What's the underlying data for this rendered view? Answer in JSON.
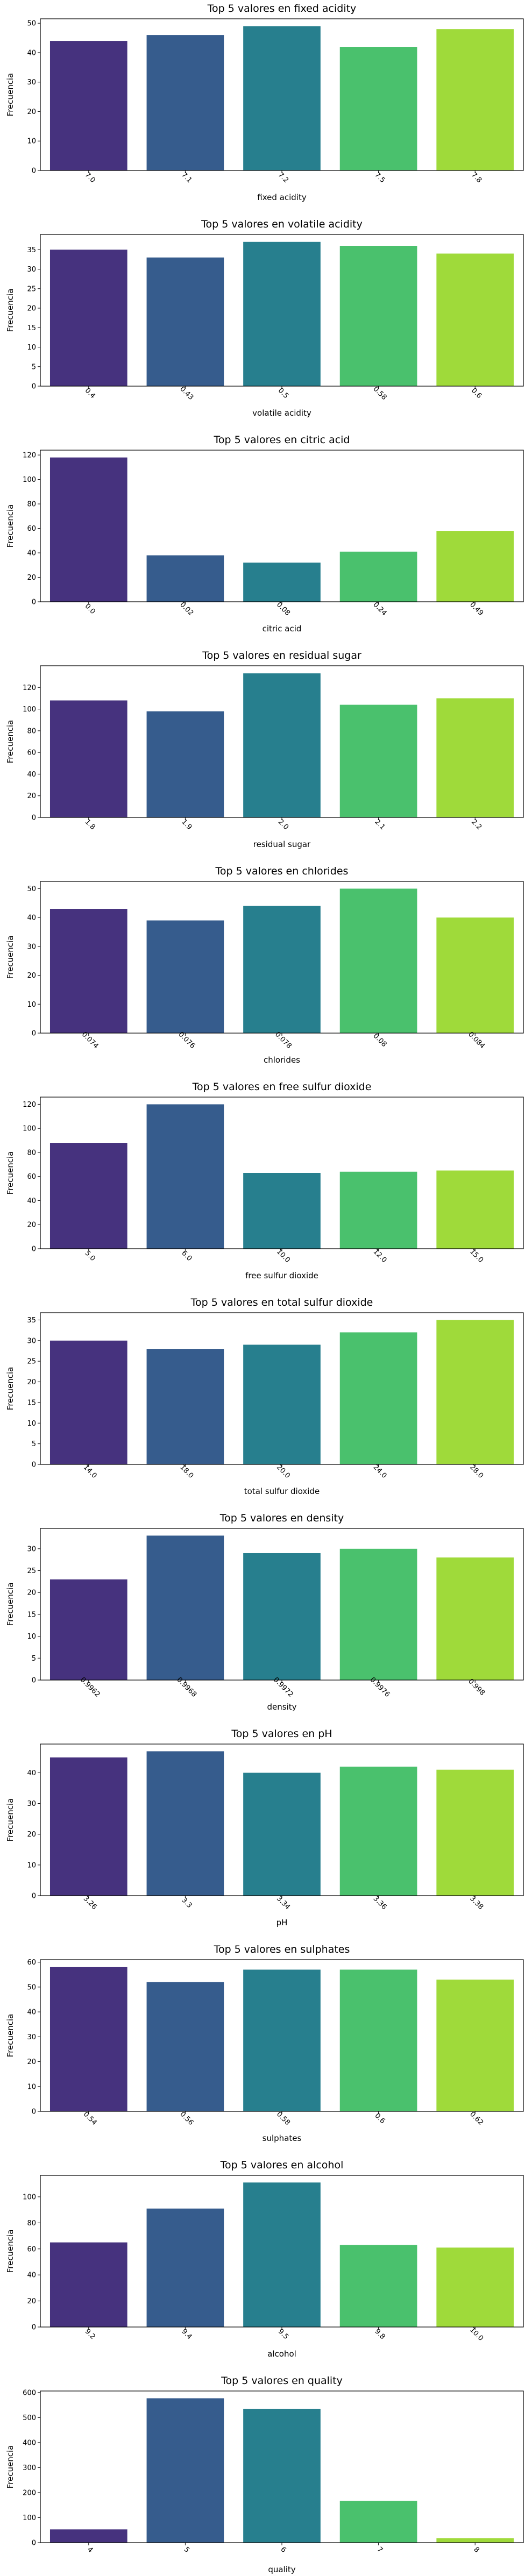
{
  "palette": [
    "#46327e",
    "#365c8d",
    "#277f8e",
    "#4ac16d",
    "#9fda3a"
  ],
  "chart_data": [
    {
      "type": "bar",
      "title": "Top 5 valores en fixed acidity",
      "xlabel": "fixed acidity",
      "ylabel": "Frecuencia",
      "categories": [
        "7.0",
        "7.1",
        "7.2",
        "7.5",
        "7.8"
      ],
      "values": [
        44,
        46,
        49,
        42,
        48
      ],
      "ylim": [
        0,
        51.5
      ],
      "yticks": [
        0,
        10,
        20,
        30,
        40,
        50
      ]
    },
    {
      "type": "bar",
      "title": "Top 5 valores en volatile acidity",
      "xlabel": "volatile acidity",
      "ylabel": "Frecuencia",
      "categories": [
        "0.4",
        "0.43",
        "0.5",
        "0.58",
        "0.6"
      ],
      "values": [
        35,
        33,
        37,
        36,
        34
      ],
      "ylim": [
        0,
        38.9
      ],
      "yticks": [
        0,
        5,
        10,
        15,
        20,
        25,
        30,
        35
      ]
    },
    {
      "type": "bar",
      "title": "Top 5 valores en citric acid",
      "xlabel": "citric acid",
      "ylabel": "Frecuencia",
      "categories": [
        "0.0",
        "0.02",
        "0.08",
        "0.24",
        "0.49"
      ],
      "values": [
        118,
        38,
        32,
        41,
        58
      ],
      "ylim": [
        0,
        124
      ],
      "yticks": [
        0,
        20,
        40,
        60,
        80,
        100,
        120
      ]
    },
    {
      "type": "bar",
      "title": "Top 5 valores en residual sugar",
      "xlabel": "residual sugar",
      "ylabel": "Frecuencia",
      "categories": [
        "1.8",
        "1.9",
        "2.0",
        "2.1",
        "2.2"
      ],
      "values": [
        108,
        98,
        133,
        104,
        110
      ],
      "ylim": [
        0,
        140
      ],
      "yticks": [
        0,
        20,
        40,
        60,
        80,
        100,
        120
      ]
    },
    {
      "type": "bar",
      "title": "Top 5 valores en chlorides",
      "xlabel": "chlorides",
      "ylabel": "Frecuencia",
      "categories": [
        "0.074",
        "0.076",
        "0.078",
        "0.08",
        "0.084"
      ],
      "values": [
        43,
        39,
        44,
        50,
        40
      ],
      "ylim": [
        0,
        52.5
      ],
      "yticks": [
        0,
        10,
        20,
        30,
        40,
        50
      ]
    },
    {
      "type": "bar",
      "title": "Top 5 valores en free sulfur dioxide",
      "xlabel": "free sulfur dioxide",
      "ylabel": "Frecuencia",
      "categories": [
        "5.0",
        "6.0",
        "10.0",
        "12.0",
        "15.0"
      ],
      "values": [
        88,
        120,
        63,
        64,
        65
      ],
      "ylim": [
        0,
        126
      ],
      "yticks": [
        0,
        20,
        40,
        60,
        80,
        100,
        120
      ]
    },
    {
      "type": "bar",
      "title": "Top 5 valores en total sulfur dioxide",
      "xlabel": "total sulfur dioxide",
      "ylabel": "Frecuencia",
      "categories": [
        "14.0",
        "18.0",
        "20.0",
        "24.0",
        "28.0"
      ],
      "values": [
        30,
        28,
        29,
        32,
        35
      ],
      "ylim": [
        0,
        36.75
      ],
      "yticks": [
        0,
        5,
        10,
        15,
        20,
        25,
        30,
        35
      ]
    },
    {
      "type": "bar",
      "title": "Top 5 valores en density",
      "xlabel": "density",
      "ylabel": "Frecuencia",
      "categories": [
        "0.9962",
        "0.9968",
        "0.9972",
        "0.9976",
        "0.998"
      ],
      "values": [
        23,
        33,
        29,
        30,
        28
      ],
      "ylim": [
        0,
        34.65
      ],
      "yticks": [
        0,
        5,
        10,
        15,
        20,
        25,
        30
      ]
    },
    {
      "type": "bar",
      "title": "Top 5 valores en pH",
      "xlabel": "pH",
      "ylabel": "Frecuencia",
      "categories": [
        "3.26",
        "3.3",
        "3.34",
        "3.36",
        "3.38"
      ],
      "values": [
        45,
        47,
        40,
        42,
        41
      ],
      "ylim": [
        0,
        49.35
      ],
      "yticks": [
        0,
        10,
        20,
        30,
        40
      ]
    },
    {
      "type": "bar",
      "title": "Top 5 valores en sulphates",
      "xlabel": "sulphates",
      "ylabel": "Frecuencia",
      "categories": [
        "0.54",
        "0.56",
        "0.58",
        "0.6",
        "0.62"
      ],
      "values": [
        58,
        52,
        57,
        57,
        53
      ],
      "ylim": [
        0,
        61
      ],
      "yticks": [
        0,
        10,
        20,
        30,
        40,
        50,
        60
      ]
    },
    {
      "type": "bar",
      "title": "Top 5 valores en alcohol",
      "xlabel": "alcohol",
      "ylabel": "Frecuencia",
      "categories": [
        "9.2",
        "9.4",
        "9.5",
        "9.8",
        "10.0"
      ],
      "values": [
        65,
        91,
        111,
        63,
        61
      ],
      "ylim": [
        0,
        116.5
      ],
      "yticks": [
        0,
        20,
        40,
        60,
        80,
        100
      ]
    },
    {
      "type": "bar",
      "title": "Top 5 valores en quality",
      "xlabel": "quality",
      "ylabel": "Frecuencia",
      "categories": [
        "4",
        "5",
        "6",
        "7",
        "8"
      ],
      "values": [
        53,
        577,
        535,
        167,
        18
      ],
      "ylim": [
        0,
        606
      ],
      "yticks": [
        0,
        100,
        200,
        300,
        400,
        500,
        600
      ]
    }
  ]
}
